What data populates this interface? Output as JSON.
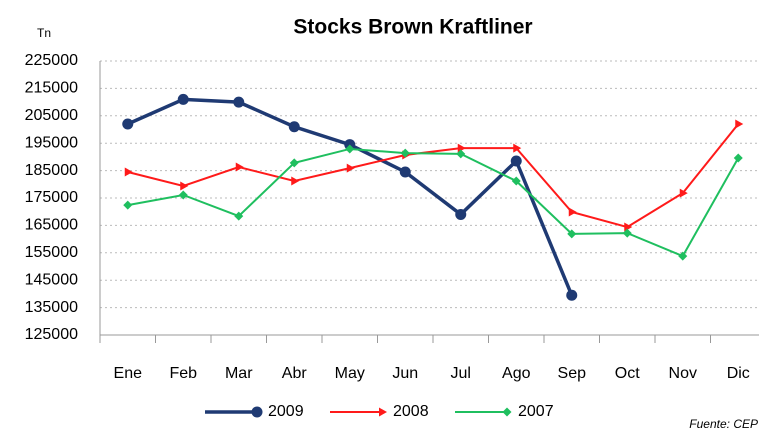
{
  "chart_data": {
    "type": "line",
    "title": "Stocks Brown Kraftliner",
    "y_label": "Tn",
    "source": "Fuente: CEP",
    "categories": [
      "Ene",
      "Feb",
      "Mar",
      "Abr",
      "May",
      "Jun",
      "Jul",
      "Ago",
      "Sep",
      "Oct",
      "Nov",
      "Dic"
    ],
    "series": [
      {
        "name": "2009",
        "color": "#1f3a73",
        "marker": "circle",
        "values": [
          202000,
          211000,
          210000,
          201000,
          194500,
          184500,
          169000,
          188500,
          139500,
          null,
          null,
          null
        ]
      },
      {
        "name": "2008",
        "color": "#ff1a1a",
        "marker": "arrow",
        "values": [
          184500,
          179400,
          186300,
          181200,
          185900,
          190700,
          193200,
          193200,
          169900,
          164400,
          176800,
          202000
        ]
      },
      {
        "name": "2007",
        "color": "#1fbf5f",
        "marker": "diamond",
        "values": [
          172400,
          176100,
          168400,
          187800,
          192900,
          191400,
          191100,
          181200,
          161900,
          162200,
          153800,
          189600
        ]
      }
    ],
    "ylim": [
      125000,
      225000
    ],
    "yticks": [
      125000,
      135000,
      145000,
      155000,
      165000,
      175000,
      185000,
      195000,
      205000,
      215000,
      225000
    ],
    "grid": true
  }
}
